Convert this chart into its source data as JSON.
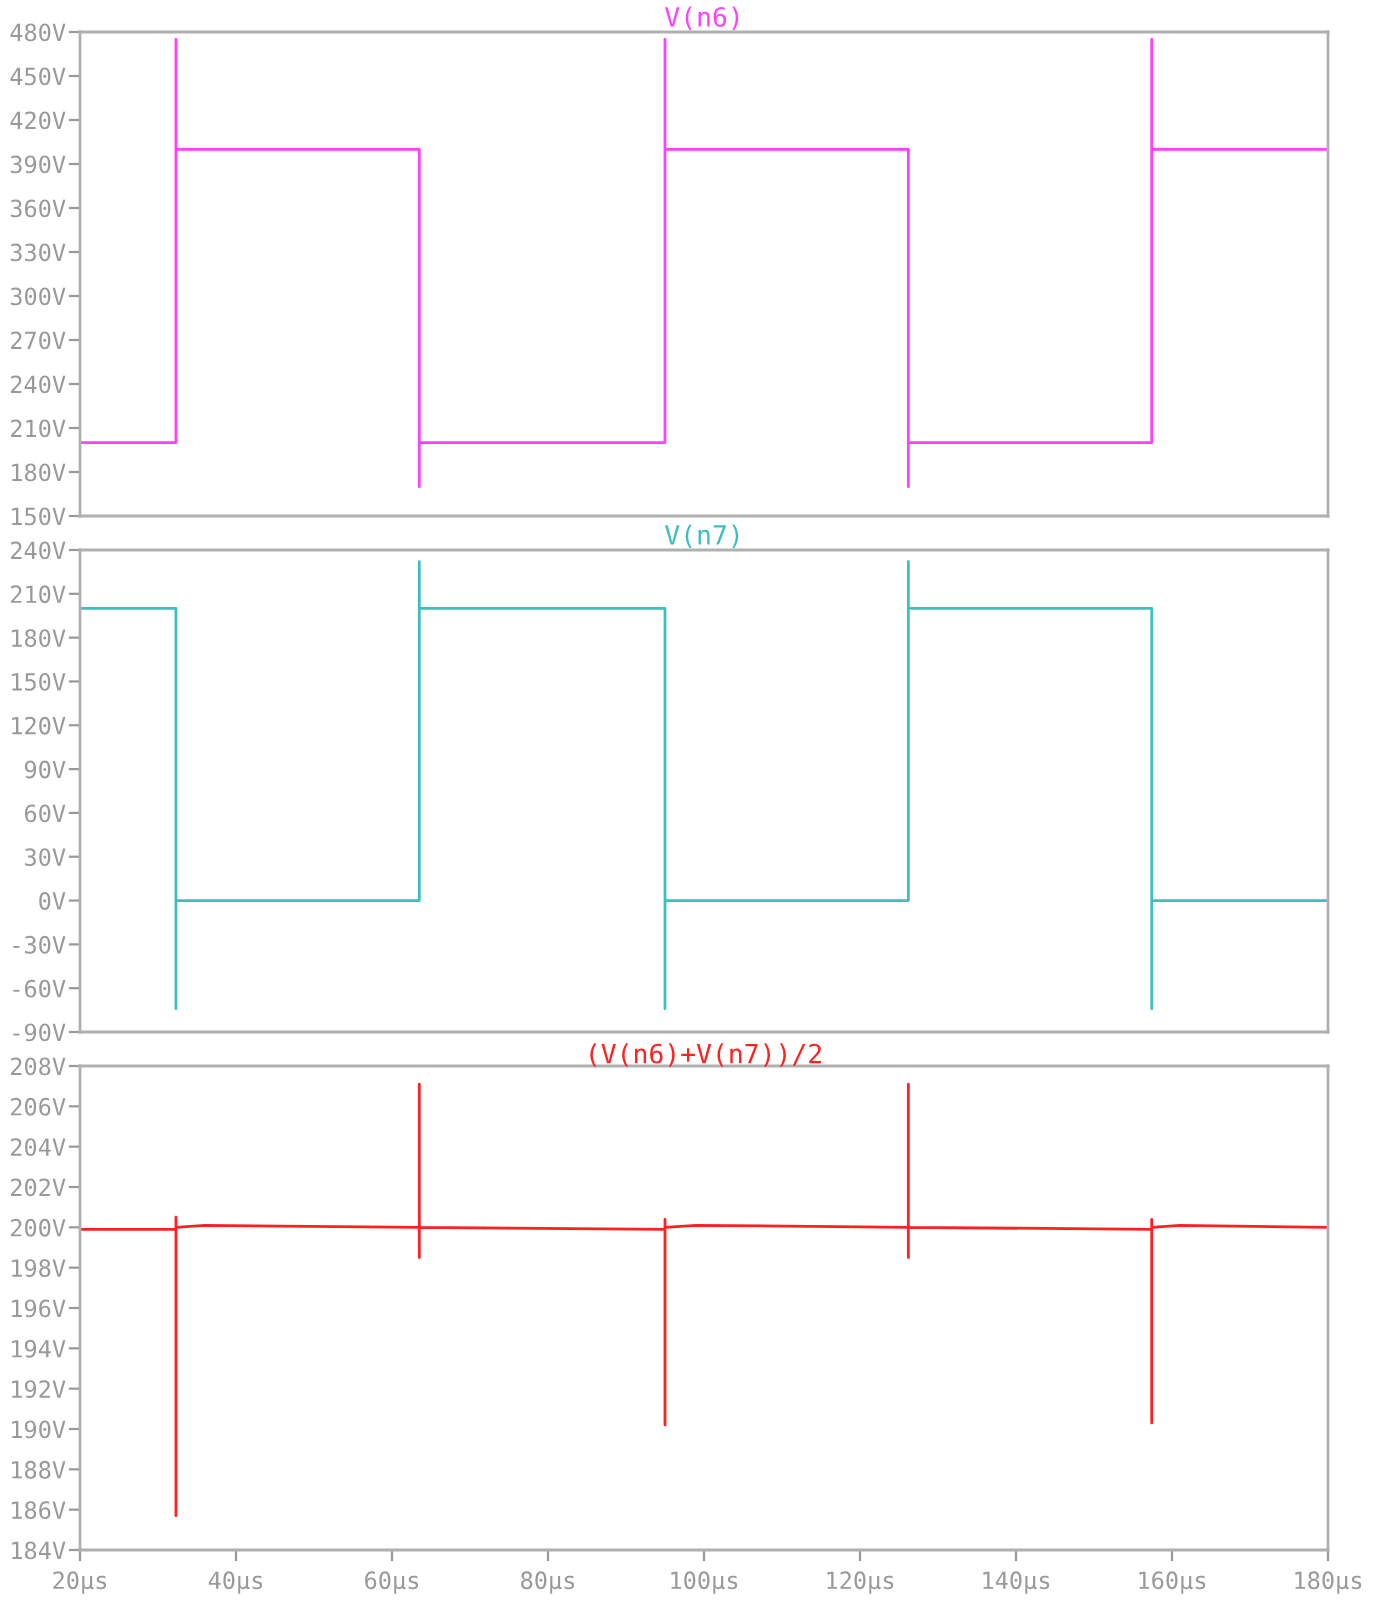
{
  "chart_data": [
    {
      "type": "line",
      "title": "V(n6)",
      "xlim": [
        20,
        180
      ],
      "ylim": [
        150,
        480
      ],
      "tick_labels": "y",
      "grid": false,
      "yticks": [
        {
          "value": 150,
          "label": "150V"
        },
        {
          "value": 180,
          "label": "180V"
        },
        {
          "value": 210,
          "label": "210V"
        },
        {
          "value": 240,
          "label": "240V"
        },
        {
          "value": 270,
          "label": "270V"
        },
        {
          "value": 300,
          "label": "300V"
        },
        {
          "value": 330,
          "label": "330V"
        },
        {
          "value": 360,
          "label": "360V"
        },
        {
          "value": 390,
          "label": "390V"
        },
        {
          "value": 420,
          "label": "420V"
        },
        {
          "value": 450,
          "label": "450V"
        },
        {
          "value": 480,
          "label": "480V"
        }
      ],
      "series": [
        {
          "color": "#ff40ff",
          "x": [
            20,
            32.3,
            32.3,
            32.3,
            63.5,
            63.5,
            63.5,
            95.0,
            95.0,
            95.0,
            126.2,
            126.2,
            126.2,
            157.4,
            157.4,
            157.4,
            180
          ],
          "values": [
            200,
            200,
            475,
            400,
            400,
            170,
            200,
            200,
            475,
            400,
            400,
            170,
            200,
            200,
            475,
            400,
            400
          ]
        }
      ]
    },
    {
      "type": "line",
      "title": "V(n7)",
      "xlim": [
        20,
        180
      ],
      "ylim": [
        -90,
        240
      ],
      "tick_labels": "y",
      "grid": false,
      "yticks": [
        {
          "value": -90,
          "label": "-90V"
        },
        {
          "value": -60,
          "label": "-60V"
        },
        {
          "value": -30,
          "label": "-30V"
        },
        {
          "value": 0,
          "label": "0V"
        },
        {
          "value": 30,
          "label": "30V"
        },
        {
          "value": 60,
          "label": "60V"
        },
        {
          "value": 90,
          "label": "90V"
        },
        {
          "value": 120,
          "label": "120V"
        },
        {
          "value": 150,
          "label": "150V"
        },
        {
          "value": 180,
          "label": "180V"
        },
        {
          "value": 210,
          "label": "210V"
        },
        {
          "value": 240,
          "label": "240V"
        }
      ],
      "series": [
        {
          "color": "#3cbfbf",
          "x": [
            20,
            32.3,
            32.3,
            32.3,
            63.5,
            63.5,
            63.5,
            95.0,
            95.0,
            95.0,
            126.2,
            126.2,
            126.2,
            157.4,
            157.4,
            157.4,
            180
          ],
          "values": [
            200,
            200,
            -74,
            0,
            0,
            232,
            200,
            200,
            -74,
            0,
            0,
            232,
            200,
            200,
            -74,
            0,
            0
          ]
        }
      ]
    },
    {
      "type": "line",
      "title": "(V(n6)+V(n7))/2",
      "xlim": [
        20,
        180
      ],
      "ylim": [
        184,
        208
      ],
      "grid": false,
      "xticks": [
        {
          "value": 20,
          "label": "20µs"
        },
        {
          "value": 40,
          "label": "40µs"
        },
        {
          "value": 60,
          "label": "60µs"
        },
        {
          "value": 80,
          "label": "80µs"
        },
        {
          "value": 100,
          "label": "100µs"
        },
        {
          "value": 120,
          "label": "120µs"
        },
        {
          "value": 140,
          "label": "140µs"
        },
        {
          "value": 160,
          "label": "160µs"
        },
        {
          "value": 180,
          "label": "180µs"
        }
      ],
      "yticks": [
        {
          "value": 184,
          "label": "184V"
        },
        {
          "value": 186,
          "label": "186V"
        },
        {
          "value": 188,
          "label": "188V"
        },
        {
          "value": 190,
          "label": "190V"
        },
        {
          "value": 192,
          "label": "192V"
        },
        {
          "value": 194,
          "label": "194V"
        },
        {
          "value": 196,
          "label": "196V"
        },
        {
          "value": 198,
          "label": "198V"
        },
        {
          "value": 200,
          "label": "200V"
        },
        {
          "value": 202,
          "label": "202V"
        },
        {
          "value": 204,
          "label": "204V"
        },
        {
          "value": 206,
          "label": "206V"
        },
        {
          "value": 208,
          "label": "208V"
        }
      ],
      "series": [
        {
          "color": "#ff2020",
          "x": [
            20,
            32.3,
            32.3,
            32.3,
            32.3,
            36,
            63.5,
            63.5,
            63.5,
            63.5,
            95.0,
            95.0,
            95.0,
            95.0,
            99,
            126.2,
            126.2,
            126.2,
            126.2,
            157.4,
            157.4,
            157.4,
            157.4,
            161,
            180
          ],
          "values": [
            199.9,
            199.9,
            200.5,
            185.7,
            200,
            200.1,
            200,
            207.1,
            198.5,
            200,
            199.9,
            200.4,
            190.2,
            200,
            200.1,
            200,
            207.1,
            198.5,
            200,
            199.9,
            200.4,
            190.3,
            200,
            200.1,
            200
          ]
        }
      ]
    }
  ]
}
